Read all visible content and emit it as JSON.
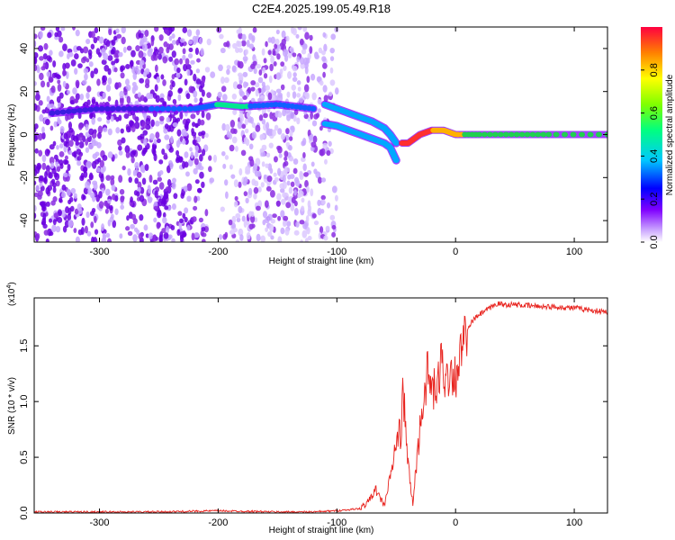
{
  "title": "C2E4.2025.199.05.49.R18",
  "chart_data": [
    {
      "type": "heatmap",
      "xlabel": "Height of straight line (km)",
      "ylabel": "Frequency (Hz)",
      "xlim": [
        -355,
        128
      ],
      "ylim": [
        -50,
        50
      ],
      "x_ticks": [
        "-300",
        "-200",
        "-100",
        "0",
        "100"
      ],
      "y_ticks": [
        "-40",
        "-20",
        "0",
        "20",
        "40"
      ],
      "colorbar": {
        "label": "Normalized spectral amplitude",
        "range": [
          0,
          1
        ],
        "ticks": [
          "0.0",
          "0.2",
          "0.4",
          "0.6",
          "0.8"
        ],
        "colors": [
          "#ffffff",
          "#c8a0ff",
          "#8000ff",
          "#0000ff",
          "#00c8ff",
          "#00ff80",
          "#80ff00",
          "#ffff00",
          "#ff8000",
          "#ff0040"
        ]
      },
      "traces": [
        {
          "segment": "noise-band",
          "x": [
            -340,
            -300,
            -260,
            -220,
            -200,
            -180,
            -150,
            -120
          ],
          "y": [
            10,
            12,
            12,
            12,
            14,
            13,
            14,
            12
          ]
        },
        {
          "segment": "upper-branch",
          "x": [
            -110,
            -100,
            -90,
            -80,
            -70,
            -60,
            -55,
            -50
          ],
          "y": [
            14,
            12,
            10,
            8,
            6,
            3,
            0,
            -4
          ]
        },
        {
          "segment": "lower-branch",
          "x": [
            -110,
            -100,
            -90,
            -80,
            -70,
            -60,
            -55,
            -50
          ],
          "y": [
            5,
            4,
            2,
            0,
            -2,
            -4,
            -6,
            -12
          ]
        },
        {
          "segment": "carrier",
          "x": [
            -45,
            -40,
            -30,
            -20,
            -10,
            0,
            20,
            50,
            80,
            128
          ],
          "y": [
            -4,
            -4,
            0,
            2,
            2,
            0,
            0,
            0,
            0,
            0
          ]
        }
      ]
    },
    {
      "type": "line",
      "xlabel": "Height of straight line (km)",
      "ylabel": "SNR (10 * v/v)",
      "y_multiplier": "(x10",
      "y_multiplier_exp": "4",
      "multiplier_close": ")",
      "xlim": [
        -355,
        128
      ],
      "ylim": [
        0,
        1.93
      ],
      "x_ticks": [
        "-300",
        "-200",
        "-100",
        "0",
        "100"
      ],
      "y_ticks": [
        "0.0",
        "0.5",
        "1.0",
        "1.5"
      ],
      "series": [
        {
          "color": "#e8231e",
          "x": [
            -355,
            -300,
            -250,
            -200,
            -150,
            -120,
            -100,
            -80,
            -72,
            -68,
            -64,
            -60,
            -55,
            -50,
            -46,
            -44,
            -40,
            -36,
            -32,
            -28,
            -24,
            -20,
            -16,
            -12,
            -8,
            -4,
            0,
            4,
            8,
            14,
            20,
            28,
            35,
            40,
            50,
            60,
            80,
            100,
            115,
            128
          ],
          "y": [
            0.01,
            0.01,
            0.01,
            0.02,
            0.01,
            0.01,
            0.02,
            0.04,
            0.12,
            0.22,
            0.14,
            0.07,
            0.32,
            0.62,
            0.75,
            1.08,
            0.42,
            0.08,
            0.55,
            0.95,
            1.25,
            1.12,
            1.05,
            1.38,
            1.18,
            1.3,
            1.22,
            1.42,
            1.58,
            1.72,
            1.78,
            1.83,
            1.88,
            1.87,
            1.87,
            1.86,
            1.85,
            1.84,
            1.82,
            1.8
          ]
        }
      ]
    }
  ]
}
